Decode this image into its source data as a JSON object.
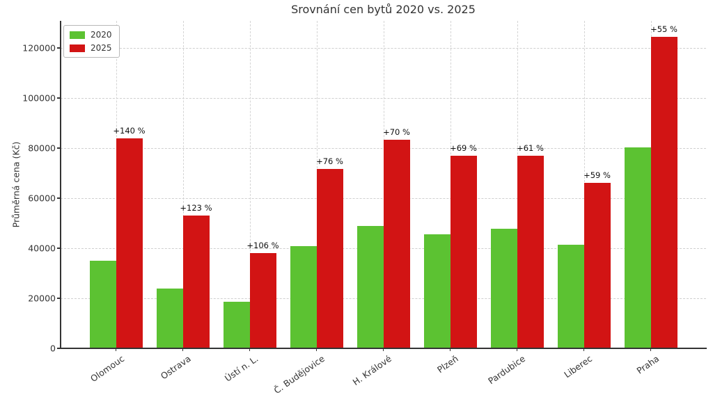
{
  "window": {
    "title": "Srovnání cen bytů 2020 vs. 2025"
  },
  "chart_data": {
    "type": "bar",
    "title": "Srovnání cen bytů 2020 vs. 2025",
    "xlabel": "",
    "ylabel": "Průměrná cena (Kč)",
    "categories": [
      "Olomouc",
      "Ostrava",
      "Ústí n. L.",
      "Č. Budějovice",
      "H. Králové",
      "Plzeň",
      "Pardubice",
      "Liberec",
      "Praha"
    ],
    "series": [
      {
        "name": "2020",
        "color": "#5cc232",
        "values": [
          35000,
          23800,
          18500,
          40700,
          49000,
          45600,
          47700,
          41500,
          80200
        ]
      },
      {
        "name": "2025",
        "color": "#d21414",
        "values": [
          84000,
          53000,
          38100,
          71600,
          83300,
          77000,
          76800,
          66000,
          124300
        ]
      }
    ],
    "annotations": [
      "+140 %",
      "+123 %",
      "+106 %",
      "+76 %",
      "+70 %",
      "+69 %",
      "+61 %",
      "+59 %",
      "+55 %"
    ],
    "yticks": [
      0,
      20000,
      40000,
      60000,
      80000,
      100000,
      120000
    ],
    "ylim": [
      0,
      130800
    ],
    "grid": true,
    "grid_style": "dashed",
    "legend_position": "upper-left",
    "legend_entries": [
      "2020",
      "2025"
    ],
    "colors": {
      "bar_2020": "#5cc232",
      "bar_2025": "#d21414",
      "grid": "#cfcfcf",
      "text": "#333333",
      "annotation": "#111111",
      "background": "#ffffff"
    }
  }
}
